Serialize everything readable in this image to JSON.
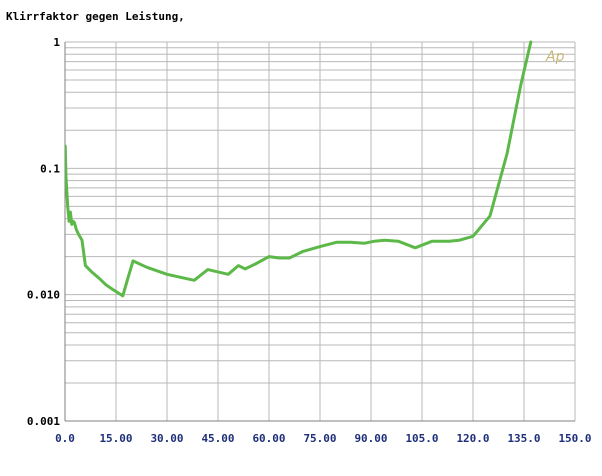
{
  "chart_data": {
    "type": "line",
    "title": "Klirrfaktor gegen Leistung,",
    "xlabel": "",
    "ylabel": "",
    "xlim": [
      0,
      150
    ],
    "ylim": [
      0.001,
      1
    ],
    "yscale": "log",
    "grid": true,
    "x_tick_labels": [
      "0.0",
      "15.00",
      "30.00",
      "45.00",
      "60.00",
      "75.00",
      "90.00",
      "105.0",
      "120.0",
      "135.0",
      "150.0"
    ],
    "x_tick_values": [
      0,
      15,
      30,
      45,
      60,
      75,
      90,
      105,
      120,
      135,
      150
    ],
    "y_tick_labels": [
      "1",
      "0.1",
      "0.010",
      "0.001"
    ],
    "y_tick_values": [
      1,
      0.1,
      0.01,
      0.001
    ],
    "logo_text": "Ap",
    "colors": {
      "line": "#5cb848",
      "grid": "#b8b8b8",
      "logo": "#c8b878",
      "x_tick_text": "#1e2f7a",
      "y_tick_text": "#000000"
    },
    "series": [
      {
        "x": [
          0.05,
          0.3,
          0.8,
          1.2,
          1.6,
          2.0,
          2.4,
          2.8,
          3.3,
          4.0,
          5.0,
          6.0,
          8.0,
          10,
          12,
          14,
          17,
          18.5,
          20,
          24,
          30,
          38,
          42,
          48,
          51,
          53,
          56,
          60,
          63,
          66,
          70,
          75,
          80,
          84,
          88,
          91,
          94,
          98,
          103,
          108,
          113,
          116,
          120,
          125,
          130,
          134,
          137
        ],
        "y": [
          0.15,
          0.085,
          0.05,
          0.038,
          0.045,
          0.036,
          0.038,
          0.037,
          0.033,
          0.03,
          0.027,
          0.017,
          0.015,
          0.0135,
          0.012,
          0.011,
          0.0098,
          0.0135,
          0.0185,
          0.0165,
          0.0145,
          0.013,
          0.0158,
          0.0145,
          0.017,
          0.016,
          0.0175,
          0.02,
          0.0195,
          0.0195,
          0.022,
          0.024,
          0.026,
          0.026,
          0.0255,
          0.0265,
          0.027,
          0.0265,
          0.0235,
          0.0265,
          0.0265,
          0.027,
          0.029,
          0.042,
          0.13,
          0.45,
          1.0
        ]
      }
    ]
  }
}
